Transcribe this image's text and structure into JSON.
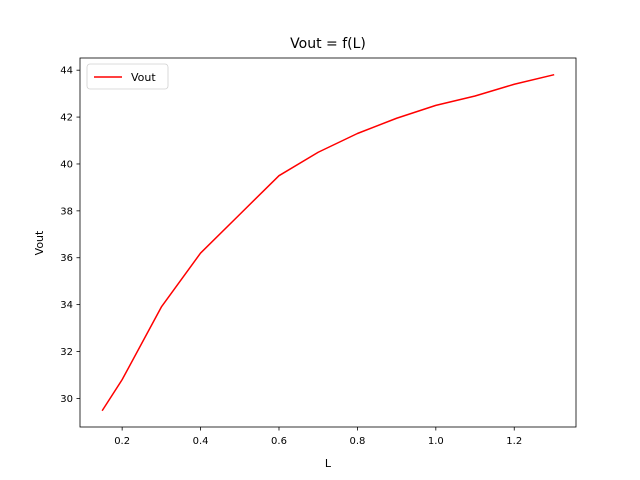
{
  "chart_data": {
    "type": "line",
    "title": "Vout = f(L)",
    "xlabel": "L",
    "ylabel": "Vout",
    "xlim": [
      0.0925,
      1.3575
    ],
    "ylim": [
      28.78,
      44.52
    ],
    "xticks": [
      0.2,
      0.4,
      0.6,
      0.8,
      1.0,
      1.2
    ],
    "xtick_labels": [
      "0.2",
      "0.4",
      "0.6",
      "0.8",
      "1.0",
      "1.2"
    ],
    "yticks": [
      30,
      32,
      34,
      36,
      38,
      40,
      42,
      44
    ],
    "ytick_labels": [
      "30",
      "32",
      "34",
      "36",
      "38",
      "40",
      "42",
      "44"
    ],
    "grid": false,
    "legend": {
      "position": "upper-left",
      "entries": [
        "Vout"
      ]
    },
    "series": [
      {
        "name": "Vout",
        "color": "#ff0000",
        "x": [
          0.15,
          0.2,
          0.3,
          0.4,
          0.5,
          0.6,
          0.7,
          0.8,
          0.9,
          1.0,
          1.1,
          1.2,
          1.3
        ],
        "y": [
          29.5,
          30.8,
          33.9,
          36.2,
          37.85,
          39.5,
          40.5,
          41.3,
          41.95,
          42.5,
          42.9,
          43.4,
          43.8
        ]
      }
    ]
  }
}
